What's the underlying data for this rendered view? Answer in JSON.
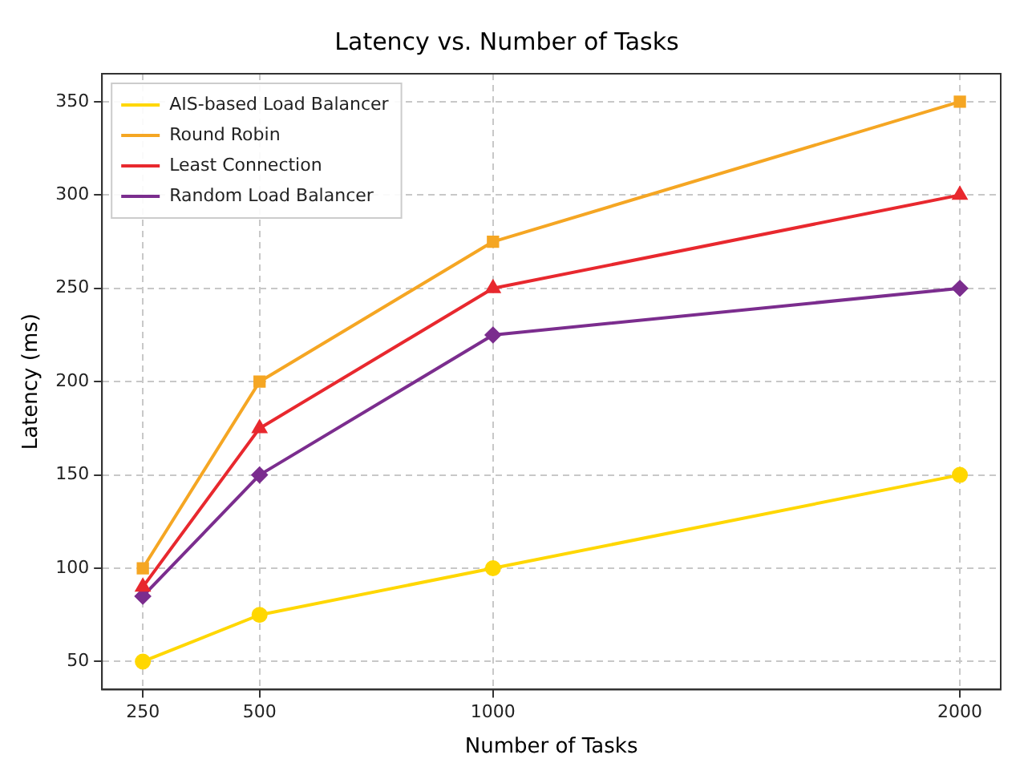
{
  "chart_data": {
    "type": "line",
    "title": "Latency vs. Number of Tasks",
    "xlabel": "Number of Tasks",
    "ylabel": "Latency (ms)",
    "x": [
      250,
      500,
      1000,
      2000
    ],
    "series": [
      {
        "name": "AIS-based Load Balancer",
        "color": "#ffd700",
        "marker": "circle",
        "values": [
          50,
          75,
          100,
          150
        ]
      },
      {
        "name": "Round Robin",
        "color": "#f5a623",
        "marker": "square",
        "values": [
          100,
          200,
          275,
          350
        ]
      },
      {
        "name": "Least Connection",
        "color": "#e8282e",
        "marker": "triangle",
        "values": [
          90,
          175,
          250,
          300
        ]
      },
      {
        "name": "Random Load Balancer",
        "color": "#7b2d8e",
        "marker": "diamond",
        "values": [
          85,
          150,
          225,
          250
        ]
      }
    ],
    "xlim": [
      162.5,
      2087.5
    ],
    "xticks": [
      250,
      500,
      1000,
      2000
    ],
    "ylim": [
      35,
      365
    ],
    "yticks": [
      50,
      100,
      150,
      200,
      250,
      300,
      350
    ],
    "grid": true,
    "legend": "top left",
    "line_style": "solid"
  }
}
